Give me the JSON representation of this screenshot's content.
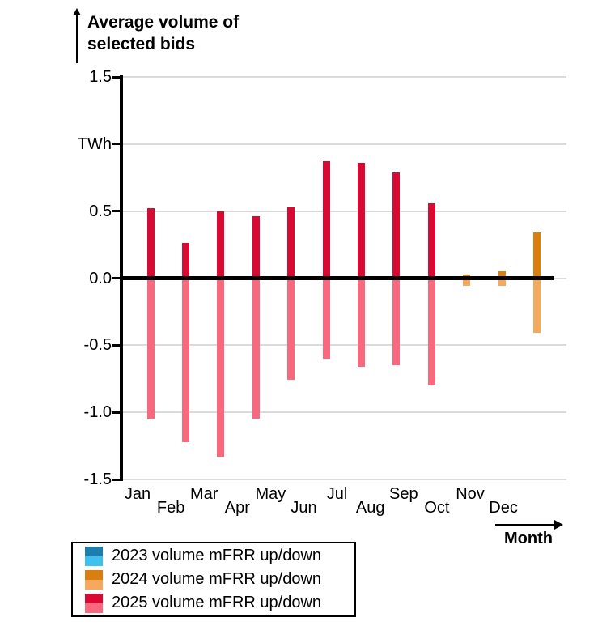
{
  "title": {
    "line1": "Average volume of",
    "line2": "selected bids"
  },
  "chart_data": {
    "type": "bar",
    "title": "Average volume of selected bids",
    "xlabel": "Month",
    "ylabel": "TWh",
    "ylim": [
      -1.5,
      1.5
    ],
    "grid": true,
    "legend_position": "bottom-left",
    "y_ticks": [
      {
        "value": 1.5,
        "label": "1.5"
      },
      {
        "value": 1.0,
        "label": "TWh"
      },
      {
        "value": 0.5,
        "label": "0.5"
      },
      {
        "value": 0.0,
        "label": "0.0"
      },
      {
        "value": -0.5,
        "label": "-0.5"
      },
      {
        "value": -1.0,
        "label": "-1.0"
      },
      {
        "value": -1.5,
        "label": "-1.5"
      }
    ],
    "categories": [
      "Jan",
      "Feb",
      "Mar",
      "Apr",
      "May",
      "Jun",
      "Jul",
      "Aug",
      "Sep",
      "Oct",
      "Nov",
      "Dec"
    ],
    "series": [
      {
        "name": "2023 volume mFRR up/down",
        "color_up": "#1B7FAE",
        "color_down": "#3FC1F0",
        "months": [],
        "up": [],
        "down": []
      },
      {
        "name": "2024 volume mFRR up/down",
        "color_up": "#D97E0F",
        "color_down": "#F5A95C",
        "months": [
          "Oct",
          "Nov",
          "Dec"
        ],
        "up": [
          0.03,
          0.05,
          0.34
        ],
        "down": [
          -0.06,
          -0.06,
          -0.41
        ]
      },
      {
        "name": "2025 volume mFRR up/down",
        "color_up": "#D80A33",
        "color_down": "#F7697F",
        "months": [
          "Jan",
          "Feb",
          "Mar",
          "Apr",
          "May",
          "Jun",
          "Jul",
          "Aug",
          "Sep"
        ],
        "up": [
          0.52,
          0.26,
          0.5,
          0.46,
          0.53,
          0.87,
          0.86,
          0.79,
          0.56
        ],
        "down": [
          -1.05,
          -1.22,
          -1.33,
          -1.05,
          -0.76,
          -0.6,
          -0.66,
          -0.65,
          -0.8
        ]
      }
    ]
  }
}
